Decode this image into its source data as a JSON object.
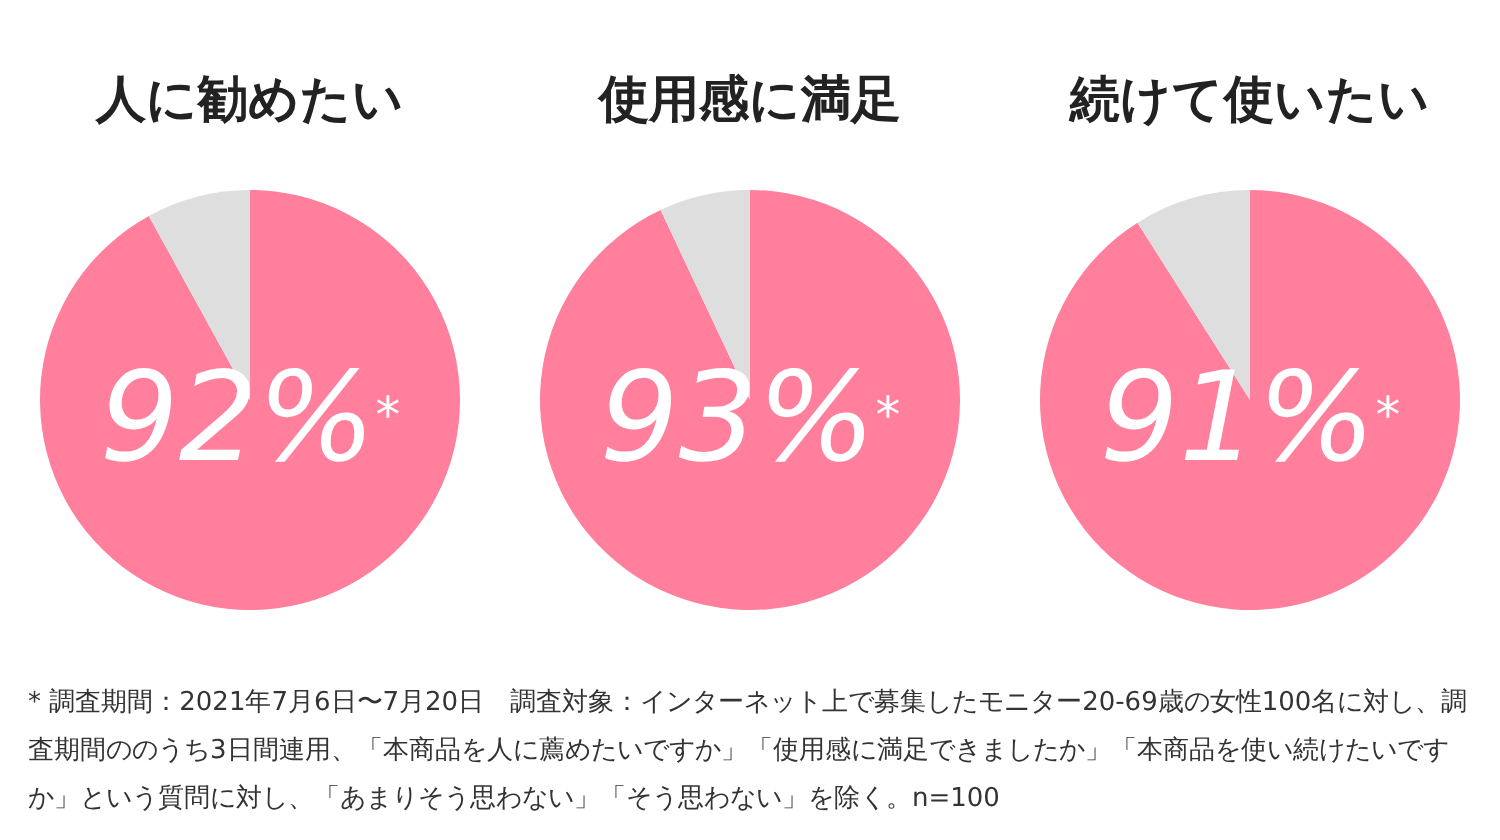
{
  "chart_data": [
    {
      "type": "pie",
      "title": "人に勧めたい",
      "categories": [
        null,
        null
      ],
      "values": [
        92,
        8
      ],
      "colors": [
        "#ff7f9c",
        "#dedede"
      ],
      "value_labels": [
        "92%$^{*}$",
        null
      ],
      "annotations": [
        "* 調査期間：2021年7月6日〜7月20日　調査対象：インターネット上で募集したモニター20-69歳の女性100名に対し、調査期間ののうち3日間連用、「本商品を人に薦めたいですか」「使用感に満足できましたか」「本商品を使い続けたいですか」という質問に対し、「あまりそう思わない」「そう思わない」を除く。n=100"
      ]
    },
    {
      "type": "pie",
      "title": "使用感に満足",
      "categories": [
        null,
        null
      ],
      "values": [
        93,
        7
      ],
      "colors": [
        "#ff7f9c",
        "#dedede"
      ],
      "value_labels": [
        "93%$^{*}$",
        null
      ]
    },
    {
      "type": "pie",
      "title": "続けて使いたい",
      "categories": [
        null,
        null
      ],
      "values": [
        91,
        9
      ],
      "colors": [
        "#ff7f9c",
        "#dedede"
      ],
      "value_labels": [
        "91%$^{*}$",
        null
      ]
    }
  ]
}
